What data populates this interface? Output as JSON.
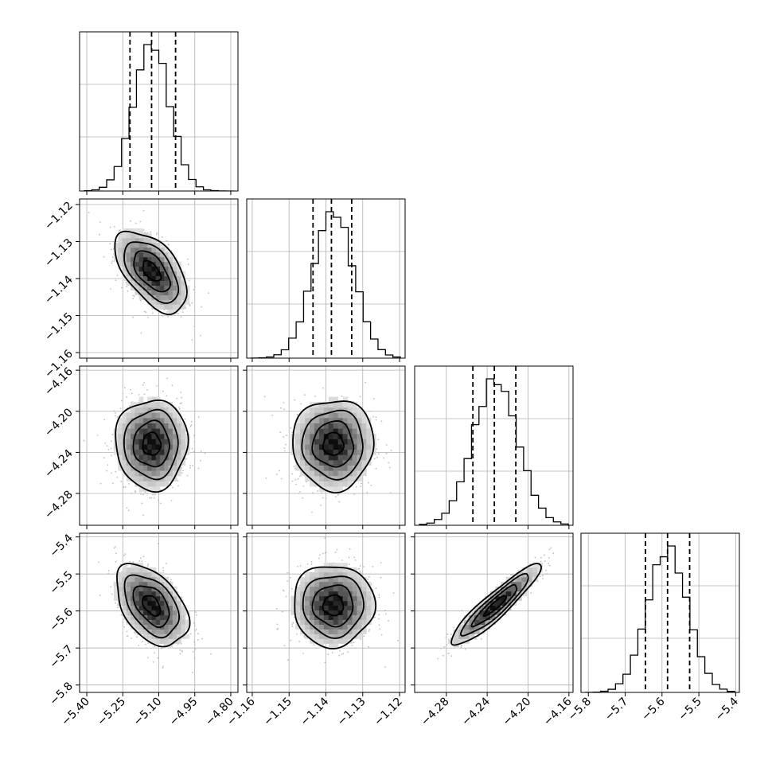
{
  "chart_data": {
    "type": "corner",
    "parameters": [
      {
        "mean": -5.13,
        "sd": 0.075,
        "q16": -5.22,
        "q50": -5.13,
        "q84": -5.03,
        "ticks": [
          -5.4,
          -5.25,
          -5.1,
          -4.95,
          -4.8
        ],
        "tick_labels": [
          "−5.40",
          "−5.25",
          "−5.10",
          "−4.95",
          "−4.80"
        ],
        "range": [
          -5.43,
          -4.77
        ]
      },
      {
        "mean": -1.138,
        "sd": 0.0055,
        "q16": -1.1435,
        "q50": -1.1385,
        "q84": -1.133,
        "ticks": [
          -1.16,
          -1.15,
          -1.14,
          -1.13,
          -1.12
        ],
        "tick_labels": [
          "−1.16",
          "−1.15",
          "−1.14",
          "−1.13",
          "−1.12"
        ],
        "range": [
          -1.1615,
          -1.1185
        ]
      },
      {
        "mean": -4.232,
        "sd": 0.022,
        "q16": -4.254,
        "q50": -4.233,
        "q84": -4.212,
        "ticks": [
          -4.28,
          -4.24,
          -4.2,
          -4.16
        ],
        "tick_labels": [
          "−4.28",
          "−4.24",
          "−4.20",
          "−4.16"
        ],
        "range": [
          -4.311,
          -4.156
        ]
      },
      {
        "mean": -5.585,
        "sd": 0.055,
        "q16": -5.645,
        "q50": -5.585,
        "q84": -5.525,
        "ticks": [
          -5.8,
          -5.7,
          -5.6,
          -5.5,
          -5.4
        ],
        "tick_labels": [
          "−5.8",
          "−5.7",
          "−5.6",
          "−5.5",
          "−5.4"
        ],
        "range": [
          -5.82,
          -5.39
        ]
      }
    ],
    "correlations": [
      [
        1.0,
        -0.55,
        0.0,
        -0.45
      ],
      [
        -0.55,
        1.0,
        0.0,
        0.0
      ],
      [
        0.0,
        0.0,
        1.0,
        0.92
      ],
      [
        -0.45,
        0.0,
        0.92,
        1.0
      ]
    ],
    "contour_levels_sigma": [
      0.5,
      1.0,
      1.5,
      2.0
    ],
    "grid": true
  }
}
